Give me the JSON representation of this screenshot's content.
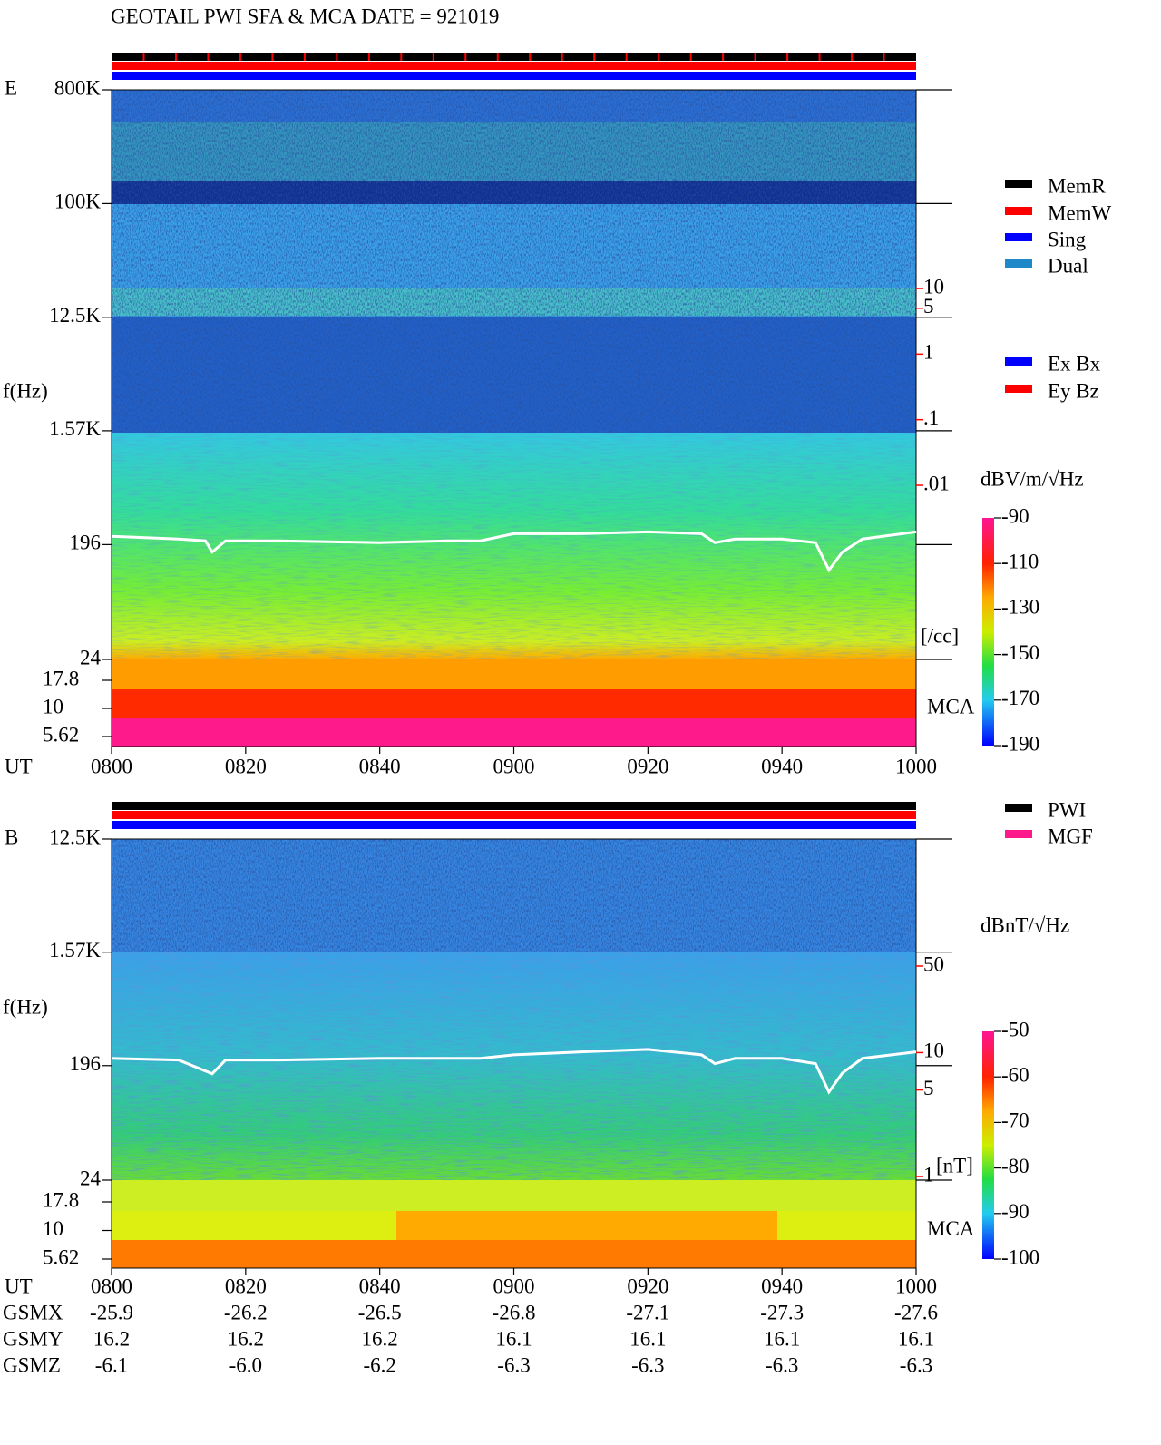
{
  "title": "GEOTAIL  PWI SFA & MCA   DATE = 921019",
  "status_legend": [
    {
      "name": "MemR",
      "color": "#000000"
    },
    {
      "name": "MemW",
      "color": "#ff0000"
    },
    {
      "name": "Sing",
      "color": "#0000ff"
    },
    {
      "name": "Dual",
      "color": "#1e88c8"
    }
  ],
  "component_legend": [
    {
      "name": "Ex Bx",
      "color": "#0000ff"
    },
    {
      "name": "Ey Bz",
      "color": "#ff0000"
    }
  ],
  "source_legend": [
    {
      "name": "PWI",
      "color": "#000000"
    },
    {
      "name": "MGF",
      "color": "#ff1a8c"
    }
  ],
  "chart_data": [
    {
      "type": "spectrogram",
      "panel_label": "E",
      "y_label": "f(Hz)",
      "x_label": "UT",
      "mca_label": "MCA",
      "log_y": true,
      "ylim": [
        24,
        800000
      ],
      "yticks": [
        {
          "value": 800000,
          "label": "800K"
        },
        {
          "value": 100000,
          "label": "100K"
        },
        {
          "value": 12500,
          "label": "12.5K"
        },
        {
          "value": 1570,
          "label": "1.57K"
        },
        196,
        24
      ],
      "mca_lim": [
        5.62,
        17.8
      ],
      "mca_ticks": [
        17.8,
        10,
        5.62
      ],
      "xlim": [
        0,
        120
      ],
      "xticks": [
        {
          "value": 0,
          "label": "0800"
        },
        {
          "value": 20,
          "label": "0820"
        },
        {
          "value": 40,
          "label": "0840"
        },
        {
          "value": 60,
          "label": "0900"
        },
        {
          "value": 80,
          "label": "0920"
        },
        {
          "value": 100,
          "label": "0940"
        },
        {
          "value": 120,
          "label": "1000"
        }
      ],
      "trace": {
        "color": "#ffffff",
        "x": [
          0,
          10,
          14,
          15,
          17,
          25,
          40,
          50,
          55,
          60,
          70,
          80,
          88,
          90,
          93,
          100,
          105,
          107,
          109,
          112,
          120
        ],
        "values": [
          228,
          217,
          210,
          171,
          210,
          210,
          203,
          210,
          210,
          239,
          239,
          247,
          239,
          203,
          217,
          217,
          203,
          123,
          171,
          217,
          247
        ]
      },
      "density_scale": {
        "color": "#ff0000",
        "ylim": [
          0.01,
          10
        ],
        "ticks": [
          10,
          5,
          1,
          {
            "value": 0.1,
            "label": ".1"
          },
          {
            "value": 0.01,
            "label": ".01"
          }
        ],
        "unit": "[/cc]"
      },
      "colorbar": {
        "title": "dBV/m/√Hz",
        "lim": [
          -190,
          -90
        ],
        "ticks": [
          -90,
          -110,
          -130,
          -150,
          -170,
          -190
        ]
      }
    },
    {
      "type": "spectrogram",
      "panel_label": "B",
      "y_label": "f(Hz)",
      "x_label": "UT",
      "mca_label": "MCA",
      "log_y": true,
      "ylim": [
        24,
        12500
      ],
      "yticks": [
        {
          "value": 12500,
          "label": "12.5K"
        },
        {
          "value": 1570,
          "label": "1.57K"
        },
        196,
        24
      ],
      "mca_lim": [
        5.62,
        17.8
      ],
      "mca_ticks": [
        17.8,
        10,
        5.62
      ],
      "xlim": [
        0,
        120
      ],
      "xticks": [
        {
          "value": 0,
          "label": "0800"
        },
        {
          "value": 20,
          "label": "0820"
        },
        {
          "value": 40,
          "label": "0840"
        },
        {
          "value": 60,
          "label": "0900"
        },
        {
          "value": 80,
          "label": "0920"
        },
        {
          "value": 100,
          "label": "0940"
        },
        {
          "value": 120,
          "label": "1000"
        }
      ],
      "trace": {
        "color": "#ffffff",
        "x": [
          0,
          10,
          15,
          17,
          25,
          40,
          55,
          60,
          70,
          80,
          88,
          90,
          93,
          100,
          105,
          107,
          109,
          112,
          120
        ],
        "values": [
          224,
          217,
          169,
          217,
          217,
          224,
          224,
          239,
          252,
          264,
          239,
          203,
          224,
          224,
          203,
          121,
          171,
          224,
          252
        ]
      },
      "density_scale": {
        "color": "#ff0000",
        "ylim": [
          1,
          50
        ],
        "ticks": [
          50,
          10,
          5,
          1
        ],
        "unit": "[nT]"
      },
      "colorbar": {
        "title": "dBnT/√Hz",
        "lim": [
          -100,
          -50
        ],
        "ticks": [
          -50,
          -60,
          -70,
          -80,
          -90,
          -100
        ]
      },
      "orbit": [
        {
          "name": "GSMX",
          "values": [
            -25.9,
            -26.2,
            -26.5,
            -26.8,
            -27.1,
            -27.3,
            -27.6
          ]
        },
        {
          "name": "GSMY",
          "values": [
            16.2,
            16.2,
            16.2,
            16.1,
            16.1,
            16.1,
            16.1
          ]
        },
        {
          "name": "GSMZ",
          "values": [
            -6.1,
            {
              "value": -6,
              "label": "-6.0"
            },
            -6.2,
            -6.3,
            -6.3,
            -6.3,
            -6.3
          ]
        }
      ]
    }
  ]
}
